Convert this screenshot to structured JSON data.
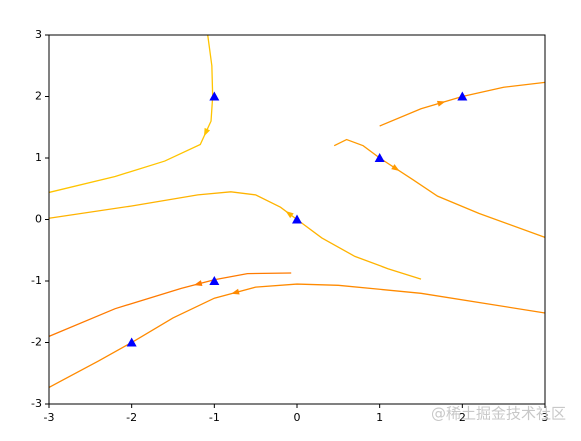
{
  "chart_data": {
    "type": "streamplot",
    "xlim": [
      -3,
      3
    ],
    "ylim": [
      -3,
      3
    ],
    "xticks": [
      -3,
      -2,
      -1,
      0,
      1,
      2,
      3
    ],
    "yticks": [
      -3,
      -2,
      -1,
      0,
      1,
      2,
      3
    ],
    "streamlines": [
      {
        "color": "#ffc400",
        "x": [
          -1.08,
          -1.03,
          -1.02,
          -1.04,
          -1.17,
          -1.6,
          -2.2,
          -3
        ],
        "y": [
          3,
          2.5,
          2.0,
          1.6,
          1.22,
          0.95,
          0.7,
          0.44
        ]
      },
      {
        "color": "#ffb300",
        "x": [
          1.5,
          1.1,
          0.7,
          0.3,
          0,
          -0.2,
          -0.5,
          -0.8,
          -1.2,
          -2,
          -3
        ],
        "y": [
          -0.97,
          -0.8,
          -0.6,
          -0.3,
          0,
          0.2,
          0.4,
          0.45,
          0.4,
          0.22,
          0.02
        ]
      },
      {
        "color": "#ff9a00",
        "x": [
          0.45,
          0.6,
          0.8,
          1,
          1.4,
          1.7,
          2.2,
          3
        ],
        "y": [
          1.2,
          1.3,
          1.2,
          1,
          0.65,
          0.38,
          0.1,
          -0.29
        ]
      },
      {
        "color": "#ff9000",
        "x": [
          1,
          1.5,
          2,
          2.5,
          3
        ],
        "y": [
          1.52,
          1.8,
          2,
          2.15,
          2.23
        ]
      },
      {
        "color": "#ff7a00",
        "x": [
          -0.07,
          -0.6,
          -1,
          -1.4,
          -2.2,
          -3
        ],
        "y": [
          -0.87,
          -0.88,
          -0.98,
          -1.12,
          -1.45,
          -1.9
        ]
      },
      {
        "color": "#ff8a00",
        "x": [
          3,
          1.5,
          0.5,
          0,
          -0.5,
          -1,
          -1.5,
          -2,
          -2.4,
          -3
        ],
        "y": [
          -1.52,
          -1.2,
          -1.07,
          -1.05,
          -1.1,
          -1.28,
          -1.6,
          -2,
          -2.3,
          -2.73
        ]
      }
    ],
    "markers": {
      "color": "#0000ff",
      "x": [
        -1,
        -2,
        -1,
        0,
        1,
        2
      ],
      "y": [
        2,
        -2,
        -1,
        0,
        1,
        2
      ]
    },
    "watermark": "@稀土掘金技术社区"
  }
}
